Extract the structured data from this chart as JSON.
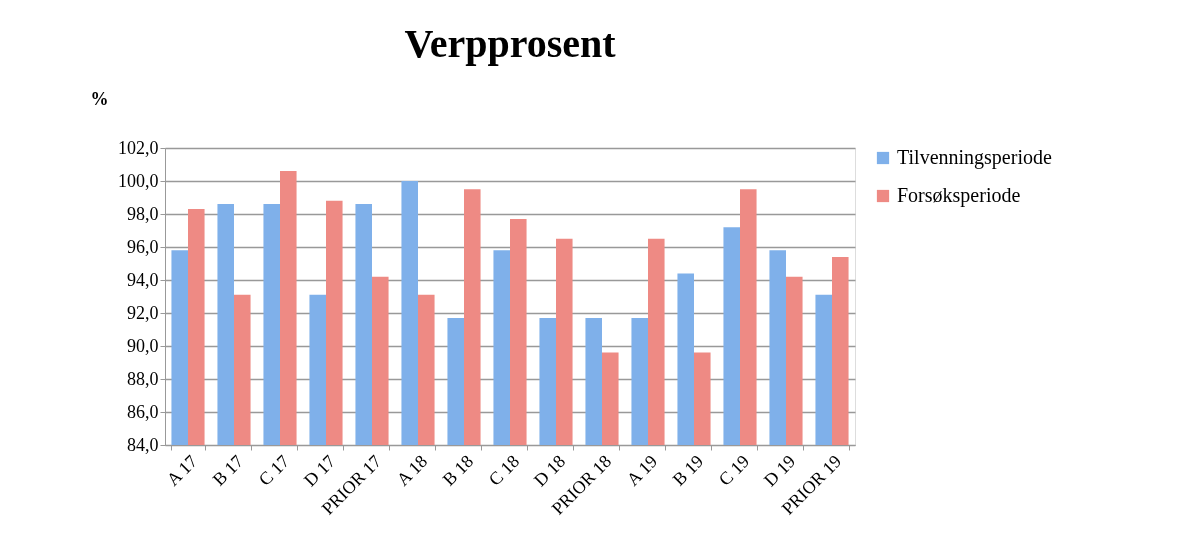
{
  "chart_data": {
    "type": "bar",
    "title": "Verpprosent",
    "ylabel": "%",
    "categories": [
      "A 17",
      "B 17",
      "C 17",
      "D 17",
      "PRIOR 17",
      "A 18",
      "B 18",
      "C 18",
      "D 18",
      "PRIOR 18",
      "A 19",
      "B 19",
      "C 19",
      "D 19",
      "PRIOR 19"
    ],
    "series": [
      {
        "name": "Tilvenningsperiode",
        "color": "#7fb0ea",
        "values": [
          95.8,
          98.6,
          98.6,
          93.1,
          98.6,
          100.0,
          91.7,
          95.8,
          91.7,
          91.7,
          91.7,
          94.4,
          97.2,
          95.8,
          93.1
        ]
      },
      {
        "name": "Forsøksperiode",
        "color": "#ee8a84",
        "values": [
          98.3,
          93.1,
          100.6,
          98.8,
          94.2,
          93.1,
          99.5,
          97.7,
          96.5,
          89.6,
          96.5,
          89.6,
          99.5,
          94.2,
          95.4
        ]
      }
    ],
    "ylim": [
      84,
      102
    ],
    "yticks": [
      {
        "value": 84,
        "label": "84,0"
      },
      {
        "value": 86,
        "label": "86,0"
      },
      {
        "value": 88,
        "label": "88,0"
      },
      {
        "value": 90,
        "label": "90,0"
      },
      {
        "value": 92,
        "label": "92,0"
      },
      {
        "value": 94,
        "label": "94,0"
      },
      {
        "value": 96,
        "label": "96,0"
      },
      {
        "value": 98,
        "label": "98,0"
      },
      {
        "value": 100,
        "label": "100,0"
      },
      {
        "value": 102,
        "label": "102,0"
      }
    ],
    "grid": "y",
    "legend": "right"
  }
}
